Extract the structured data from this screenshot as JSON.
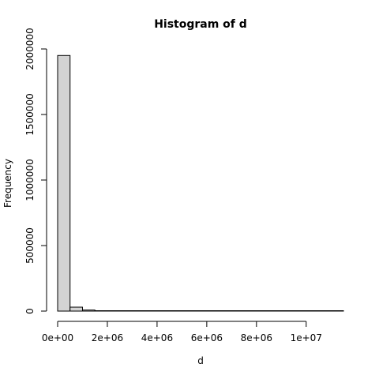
{
  "chart_data": {
    "type": "bar",
    "title": "Histogram of d",
    "xlabel": "d",
    "ylabel": "Frequency",
    "xlim": [
      0,
      11500000
    ],
    "ylim": [
      0,
      2000000
    ],
    "bin_width": 500000,
    "bins": [
      {
        "start": 0,
        "end": 500000,
        "count": 1950000
      },
      {
        "start": 500000,
        "end": 1000000,
        "count": 30000
      },
      {
        "start": 1000000,
        "end": 1500000,
        "count": 8000
      },
      {
        "start": 1500000,
        "end": 2000000,
        "count": 3000
      },
      {
        "start": 2000000,
        "end": 2500000,
        "count": 1500
      },
      {
        "start": 2500000,
        "end": 3000000,
        "count": 800
      },
      {
        "start": 3000000,
        "end": 3500000,
        "count": 500
      },
      {
        "start": 3500000,
        "end": 4000000,
        "count": 300
      },
      {
        "start": 4000000,
        "end": 4500000,
        "count": 200
      },
      {
        "start": 4500000,
        "end": 5000000,
        "count": 150
      },
      {
        "start": 5000000,
        "end": 5500000,
        "count": 100
      },
      {
        "start": 5500000,
        "end": 6000000,
        "count": 80
      },
      {
        "start": 6000000,
        "end": 6500000,
        "count": 60
      },
      {
        "start": 6500000,
        "end": 7000000,
        "count": 50
      },
      {
        "start": 7000000,
        "end": 7500000,
        "count": 40
      },
      {
        "start": 7500000,
        "end": 8000000,
        "count": 30
      },
      {
        "start": 8000000,
        "end": 8500000,
        "count": 25
      },
      {
        "start": 8500000,
        "end": 9000000,
        "count": 20
      },
      {
        "start": 9000000,
        "end": 9500000,
        "count": 15
      },
      {
        "start": 9500000,
        "end": 10000000,
        "count": 10
      },
      {
        "start": 10000000,
        "end": 10500000,
        "count": 8
      },
      {
        "start": 10500000,
        "end": 11000000,
        "count": 5
      },
      {
        "start": 11000000,
        "end": 11500000,
        "count": 3
      }
    ],
    "x_ticks": [
      {
        "value": 0,
        "label": "0e+00"
      },
      {
        "value": 2000000,
        "label": "2e+06"
      },
      {
        "value": 4000000,
        "label": "4e+06"
      },
      {
        "value": 6000000,
        "label": "6e+06"
      },
      {
        "value": 8000000,
        "label": "8e+06"
      },
      {
        "value": 10000000,
        "label": "1e+07"
      }
    ],
    "y_ticks": [
      {
        "value": 0,
        "label": "0"
      },
      {
        "value": 500000,
        "label": "500000"
      },
      {
        "value": 1000000,
        "label": "1000000"
      },
      {
        "value": 1500000,
        "label": "1500000"
      },
      {
        "value": 2000000,
        "label": "2000000"
      }
    ],
    "colors": {
      "bar_fill": "#d3d3d3",
      "bar_stroke": "#000000"
    },
    "grid": false
  }
}
